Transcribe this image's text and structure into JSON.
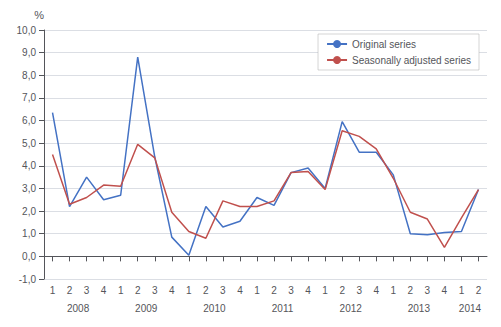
{
  "chart_data": {
    "type": "line",
    "categories": [
      "1",
      "2",
      "3",
      "4",
      "1",
      "2",
      "3",
      "4",
      "1",
      "2",
      "3",
      "4",
      "1",
      "2",
      "3",
      "4",
      "1",
      "2",
      "3",
      "4",
      "1",
      "2",
      "3",
      "4",
      "1",
      "2"
    ],
    "series": [
      {
        "name": "Original series",
        "color": "#4472C4",
        "values": [
          6.35,
          2.2,
          3.5,
          2.5,
          2.7,
          8.8,
          4.4,
          0.85,
          0.05,
          2.2,
          1.3,
          1.55,
          2.6,
          2.25,
          3.7,
          3.9,
          3.0,
          5.95,
          4.6,
          4.6,
          3.6,
          1.0,
          0.95,
          1.05,
          1.1,
          2.95
        ]
      },
      {
        "name": "Seasonally adjusted series",
        "color": "#C0504D",
        "values": [
          4.5,
          2.3,
          2.6,
          3.15,
          3.1,
          4.95,
          4.35,
          1.95,
          1.1,
          0.8,
          2.45,
          2.2,
          2.2,
          2.45,
          3.7,
          3.75,
          2.95,
          5.55,
          5.3,
          4.75,
          3.45,
          1.95,
          1.65,
          0.4,
          1.7,
          2.95
        ]
      }
    ],
    "ylabel": "%",
    "ylim": [
      -1.0,
      10.0
    ],
    "yticks": [
      {
        "value": -1.0,
        "label": "-1,0"
      },
      {
        "value": 0.0,
        "label": "0,0"
      },
      {
        "value": 1.0,
        "label": "1,0"
      },
      {
        "value": 2.0,
        "label": "2,0"
      },
      {
        "value": 3.0,
        "label": "3,0"
      },
      {
        "value": 4.0,
        "label": "4,0"
      },
      {
        "value": 5.0,
        "label": "5,0"
      },
      {
        "value": 6.0,
        "label": "6,0"
      },
      {
        "value": 7.0,
        "label": "7,0"
      },
      {
        "value": 8.0,
        "label": "8,0"
      },
      {
        "value": 9.0,
        "label": "9,0"
      },
      {
        "value": 10.0,
        "label": "10,0"
      }
    ],
    "annotations": [
      {
        "text": "2008",
        "x": 2.5
      },
      {
        "text": "2009",
        "x": 6.5
      },
      {
        "text": "2010",
        "x": 10.5
      },
      {
        "text": "2011",
        "x": 14.5
      },
      {
        "text": "2012",
        "x": 18.5
      },
      {
        "text": "2013",
        "x": 22.5
      },
      {
        "text": "2014",
        "x": 25.5
      }
    ],
    "grid": true,
    "legend": "upper right"
  }
}
